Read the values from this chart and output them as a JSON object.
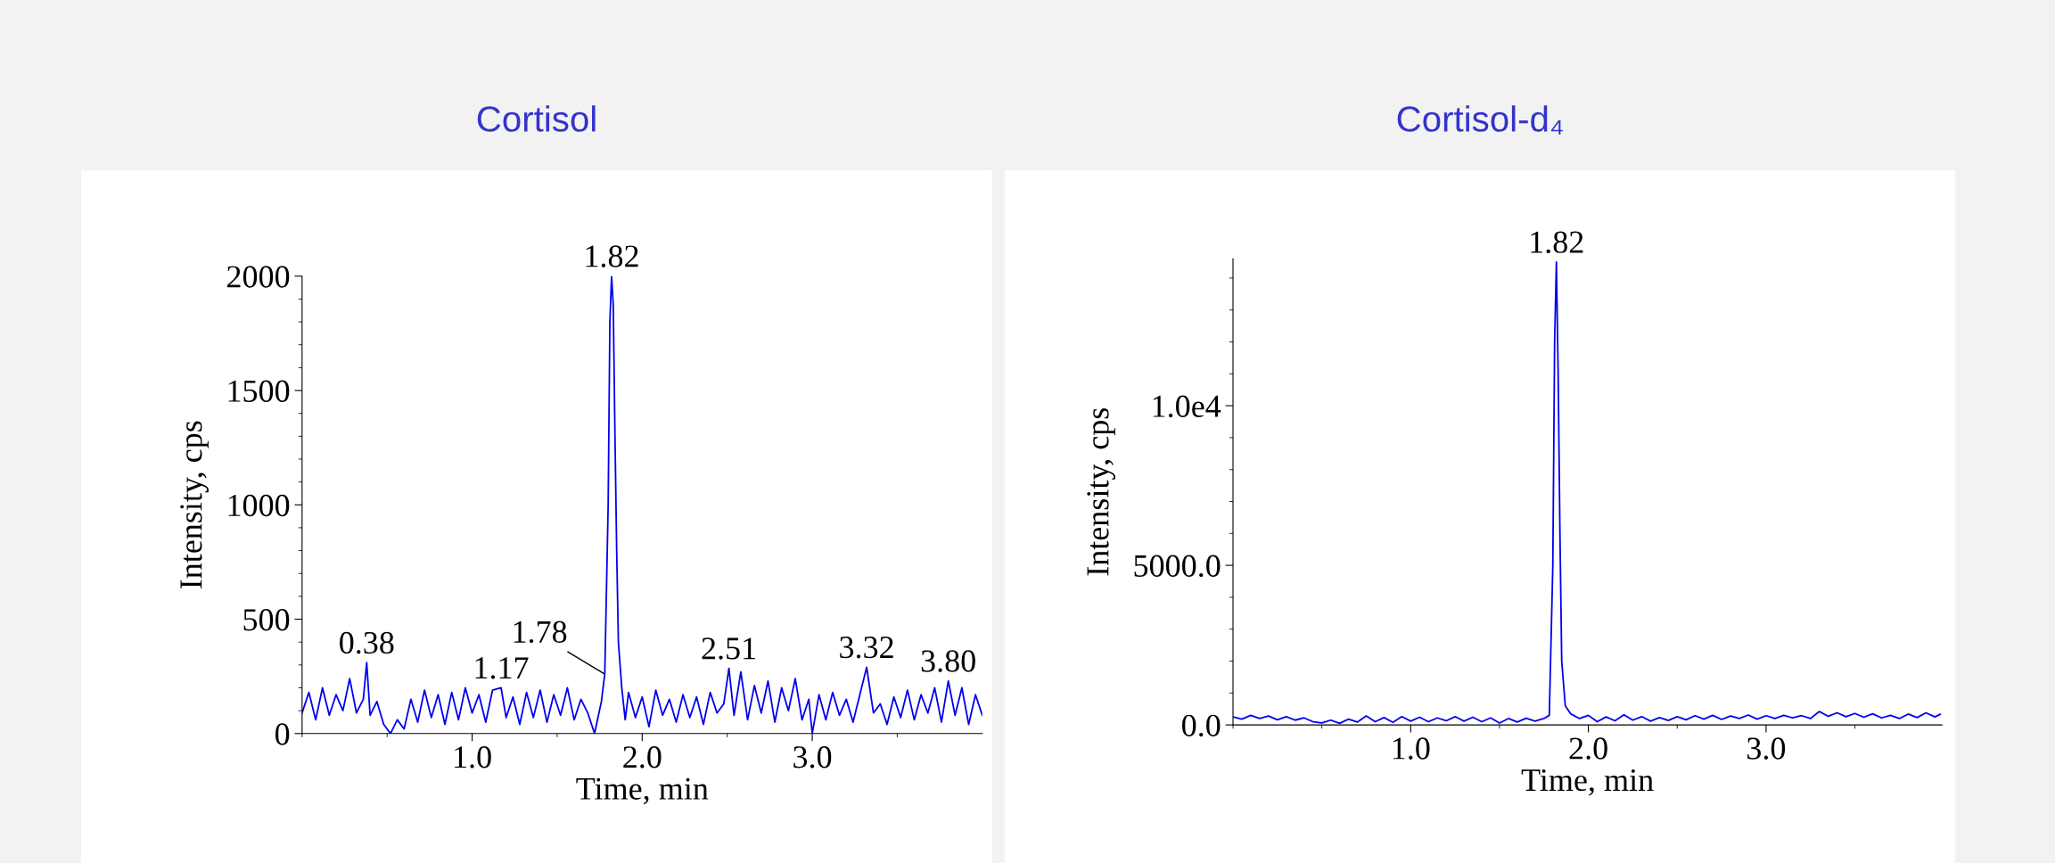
{
  "chart_data": [
    {
      "type": "line",
      "title": "Cortisol",
      "xlabel": "Time, min",
      "ylabel": "Intensity, cps",
      "x": [
        0.0,
        0.04,
        0.08,
        0.12,
        0.16,
        0.2,
        0.24,
        0.28,
        0.32,
        0.36,
        0.38,
        0.4,
        0.44,
        0.48,
        0.52,
        0.56,
        0.6,
        0.64,
        0.68,
        0.72,
        0.76,
        0.8,
        0.84,
        0.88,
        0.92,
        0.96,
        1.0,
        1.04,
        1.08,
        1.12,
        1.17,
        1.2,
        1.24,
        1.28,
        1.32,
        1.36,
        1.4,
        1.44,
        1.48,
        1.52,
        1.56,
        1.6,
        1.64,
        1.68,
        1.72,
        1.76,
        1.78,
        1.8,
        1.81,
        1.82,
        1.83,
        1.84,
        1.85,
        1.86,
        1.88,
        1.9,
        1.92,
        1.96,
        2.0,
        2.04,
        2.08,
        2.12,
        2.16,
        2.2,
        2.24,
        2.28,
        2.32,
        2.36,
        2.4,
        2.44,
        2.48,
        2.51,
        2.54,
        2.58,
        2.62,
        2.66,
        2.7,
        2.74,
        2.78,
        2.82,
        2.86,
        2.9,
        2.94,
        2.98,
        3.0,
        3.04,
        3.08,
        3.12,
        3.16,
        3.2,
        3.24,
        3.28,
        3.32,
        3.36,
        3.4,
        3.44,
        3.48,
        3.52,
        3.56,
        3.6,
        3.64,
        3.68,
        3.72,
        3.76,
        3.8,
        3.84,
        3.88,
        3.92,
        3.96,
        4.0
      ],
      "series": [
        {
          "color": "#0000ee",
          "values": [
            90,
            180,
            60,
            200,
            80,
            170,
            100,
            240,
            90,
            150,
            310,
            80,
            140,
            40,
            0,
            60,
            20,
            150,
            50,
            190,
            70,
            170,
            40,
            180,
            60,
            200,
            90,
            170,
            50,
            190,
            200,
            70,
            160,
            40,
            180,
            70,
            190,
            50,
            170,
            80,
            200,
            60,
            150,
            90,
            0,
            140,
            260,
            1000,
            1800,
            2000,
            1870,
            1300,
            800,
            400,
            200,
            60,
            180,
            70,
            160,
            30,
            190,
            80,
            150,
            50,
            170,
            70,
            160,
            40,
            180,
            90,
            130,
            285,
            80,
            270,
            60,
            210,
            90,
            230,
            50,
            200,
            100,
            240,
            60,
            150,
            0,
            170,
            60,
            180,
            80,
            150,
            50,
            170,
            290,
            90,
            130,
            40,
            160,
            70,
            190,
            60,
            170,
            90,
            200,
            50,
            230,
            80,
            200,
            40,
            170,
            80
          ]
        }
      ],
      "xlim": [
        0,
        4.0
      ],
      "ylim": [
        0,
        2000
      ],
      "xticks": [
        {
          "value": 1,
          "label": "1.0"
        },
        {
          "value": 2,
          "label": "2.0"
        },
        {
          "value": 3,
          "label": "3.0"
        }
      ],
      "yticks": [
        0,
        500,
        1000,
        1500,
        2000
      ],
      "annotations": [
        {
          "text": "0.38",
          "x": 0.38,
          "y": 310
        },
        {
          "text": "1.17",
          "x": 1.17,
          "y": 200
        },
        {
          "text": "1.78",
          "x": 1.78,
          "y": 260
        },
        {
          "text": "1.82",
          "x": 1.82,
          "y": 2000
        },
        {
          "text": "2.51",
          "x": 2.51,
          "y": 285
        },
        {
          "text": "3.32",
          "x": 3.32,
          "y": 290
        },
        {
          "text": "3.80",
          "x": 3.8,
          "y": 230
        }
      ]
    },
    {
      "type": "line",
      "title": "Cortisol-d₄",
      "xlabel": "Time, min",
      "ylabel": "Intensity, cps",
      "x": [
        0.0,
        0.05,
        0.1,
        0.15,
        0.2,
        0.25,
        0.3,
        0.35,
        0.4,
        0.45,
        0.5,
        0.55,
        0.6,
        0.65,
        0.7,
        0.75,
        0.8,
        0.85,
        0.9,
        0.95,
        1.0,
        1.05,
        1.1,
        1.15,
        1.2,
        1.25,
        1.3,
        1.35,
        1.4,
        1.45,
        1.5,
        1.55,
        1.6,
        1.65,
        1.7,
        1.75,
        1.78,
        1.8,
        1.81,
        1.82,
        1.83,
        1.84,
        1.85,
        1.87,
        1.9,
        1.95,
        2.0,
        2.05,
        2.1,
        2.15,
        2.2,
        2.25,
        2.3,
        2.35,
        2.4,
        2.45,
        2.5,
        2.55,
        2.6,
        2.65,
        2.7,
        2.75,
        2.8,
        2.85,
        2.9,
        2.95,
        3.0,
        3.05,
        3.1,
        3.15,
        3.2,
        3.25,
        3.3,
        3.35,
        3.4,
        3.45,
        3.5,
        3.55,
        3.6,
        3.65,
        3.7,
        3.75,
        3.8,
        3.85,
        3.9,
        3.95,
        3.98
      ],
      "series": [
        {
          "color": "#0000ee",
          "values": [
            250,
            180,
            300,
            200,
            280,
            160,
            260,
            150,
            220,
            100,
            60,
            150,
            50,
            180,
            90,
            280,
            100,
            230,
            80,
            260,
            120,
            240,
            100,
            220,
            130,
            260,
            120,
            240,
            100,
            220,
            60,
            200,
            90,
            210,
            120,
            200,
            300,
            5000,
            12000,
            14500,
            11000,
            6000,
            2000,
            600,
            350,
            200,
            300,
            100,
            250,
            130,
            320,
            150,
            260,
            120,
            230,
            140,
            260,
            160,
            290,
            180,
            300,
            170,
            280,
            200,
            310,
            180,
            290,
            200,
            300,
            220,
            290,
            200,
            420,
            270,
            380,
            260,
            360,
            240,
            350,
            220,
            300,
            200,
            340,
            230,
            380,
            250,
            330
          ]
        }
      ],
      "xlim": [
        0,
        3.99
      ],
      "ylim": [
        0,
        14600
      ],
      "xticks": [
        {
          "value": 1,
          "label": "1.0"
        },
        {
          "value": 2,
          "label": "2.0"
        },
        {
          "value": 3,
          "label": "3.0"
        }
      ],
      "yticks": [
        {
          "value": 0,
          "label": "0.0"
        },
        {
          "value": 5000,
          "label": "5000.0"
        },
        {
          "value": 10000,
          "label": "1.0e4"
        }
      ],
      "annotations": [
        {
          "text": "1.82",
          "x": 1.82,
          "y": 14500
        }
      ]
    }
  ]
}
